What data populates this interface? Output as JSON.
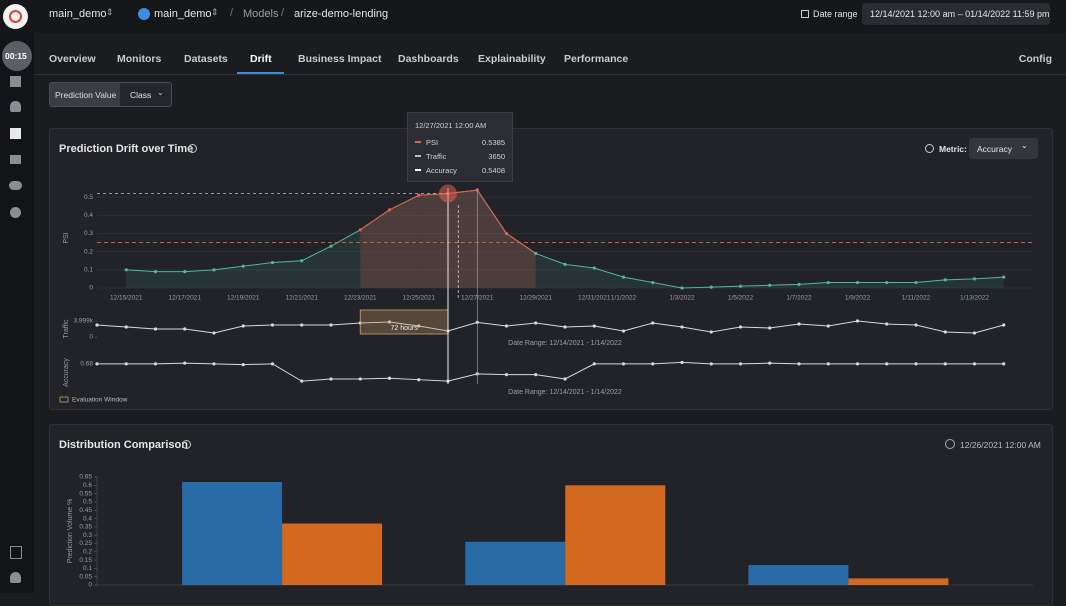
{
  "nav": {
    "workspace": "main_demo",
    "project": "main_demo",
    "section": "Models",
    "model": "arize-demo-lending",
    "date_range_label": "Date range",
    "date_range": "12/14/2021 12:00 am – 01/14/2022 11:59 pm"
  },
  "sidebar": {
    "timer": "00:15"
  },
  "tabs": {
    "items": [
      "Overview",
      "Monitors",
      "Datasets",
      "Drift",
      "Business Impact",
      "Dashboards",
      "Explainability",
      "Performance"
    ],
    "active": 3,
    "config": "Config"
  },
  "filters": {
    "label": "Prediction Value",
    "value": "Class"
  },
  "drift_panel": {
    "title": "Prediction Drift over Time",
    "metric_label": "Metric:",
    "metric": "Accuracy",
    "chart_data": {
      "type": "line",
      "categories": [
        null,
        "12/15/2021",
        null,
        "12/17/2021",
        null,
        "12/19/2021",
        null,
        "12/21/2021",
        null,
        "12/23/2021",
        null,
        "12/25/2021",
        null,
        "12/27/2021",
        null,
        "12/29/2021",
        null,
        "12/31/2021",
        "1/1/2022",
        null,
        "1/3/2022",
        null,
        "1/5/2022",
        null,
        "1/7/2022",
        null,
        "1/9/2022",
        null,
        "1/11/2022",
        null,
        "1/13/2022",
        null
      ],
      "panels": [
        {
          "ylabel": "PSI",
          "color": "#4fb5a0",
          "alert_color": "#e0604f",
          "threshold": 0.25,
          "fill": true,
          "grid": true,
          "ylim": [
            0,
            0.55
          ],
          "yticks": [
            0,
            0.1,
            0.2,
            0.3,
            0.4,
            0.5
          ],
          "values": [
            null,
            0.1,
            0.09,
            0.09,
            0.1,
            0.12,
            0.14,
            0.15,
            0.23,
            0.32,
            0.43,
            0.51,
            0.52,
            0.5385,
            0.3,
            0.19,
            0.13,
            0.11,
            0.06,
            0.03,
            0.0,
            0.005,
            0.01,
            0.015,
            0.02,
            0.03,
            0.03,
            0.03,
            0.03,
            0.045,
            0.05,
            0.06
          ]
        },
        {
          "ylabel": "Traffic",
          "color": "#d9d9d9",
          "fill": false,
          "grid": false,
          "ylim": [
            0,
            3999
          ],
          "yticks": [
            {
              "value": 3999,
              "label": "3.999k"
            },
            0
          ],
          "values": [
            3000,
            2500,
            2000,
            2000,
            1000,
            2750,
            3000,
            3000,
            3000,
            3500,
            3750,
            2750,
            1500,
            3650,
            2750,
            3500,
            2500,
            2750,
            1500,
            3500,
            2500,
            1250,
            2500,
            2250,
            3250,
            2750,
            4000,
            3250,
            3000,
            1250,
            1000,
            3000
          ]
        },
        {
          "ylabel": "Accuracy",
          "color": "#d9d9d9",
          "fill": false,
          "grid": false,
          "ylim": [
            0.4,
            0.72
          ],
          "yticks": [
            0.68
          ],
          "values": [
            0.68,
            0.68,
            0.68,
            0.69,
            0.68,
            0.67,
            0.68,
            0.44,
            0.47,
            0.47,
            0.48,
            0.46,
            0.44,
            0.5408,
            0.53,
            0.53,
            0.47,
            0.68,
            0.68,
            0.68,
            0.7,
            0.68,
            0.68,
            0.69,
            0.68,
            0.68,
            0.68,
            0.68,
            0.68,
            0.68,
            0.68,
            0.68
          ]
        }
      ],
      "window": {
        "label": "72 hours",
        "start": 9,
        "end": 12
      },
      "range_note": "Date Range: 12/14/2021 - 1/14/2022",
      "legend": "Evaluation Window",
      "tooltip": {
        "index": 13,
        "date": "12/27/2021 12:00 AM",
        "rows": [
          {
            "name": "PSI",
            "value": 0.5385,
            "color": "#e0604f"
          },
          {
            "name": "Traffic",
            "value": 3650,
            "color": "#bbbbbb"
          },
          {
            "name": "Accuracy",
            "value": 0.5408,
            "color": "#ffffff"
          }
        ]
      }
    }
  },
  "distribution_panel": {
    "title": "Distribution Comparison",
    "timestamp": "12/26/2021 12:00 AM",
    "chart_data": {
      "type": "bar",
      "ylabel": "Prediction Volume %",
      "categories": [
        null,
        null,
        null
      ],
      "ylim": [
        0,
        0.65
      ],
      "yticks": [
        0,
        0.05,
        0.1,
        0.15,
        0.2,
        0.25,
        0.3,
        0.35,
        0.4,
        0.45,
        0.5,
        0.55,
        0.6,
        0.65
      ],
      "series": [
        {
          "color": "#2a73b5",
          "values": [
            0.62,
            0.26,
            0.12
          ]
        },
        {
          "color": "#e8701e",
          "values": [
            0.37,
            0.6,
            0.04
          ]
        }
      ]
    }
  }
}
